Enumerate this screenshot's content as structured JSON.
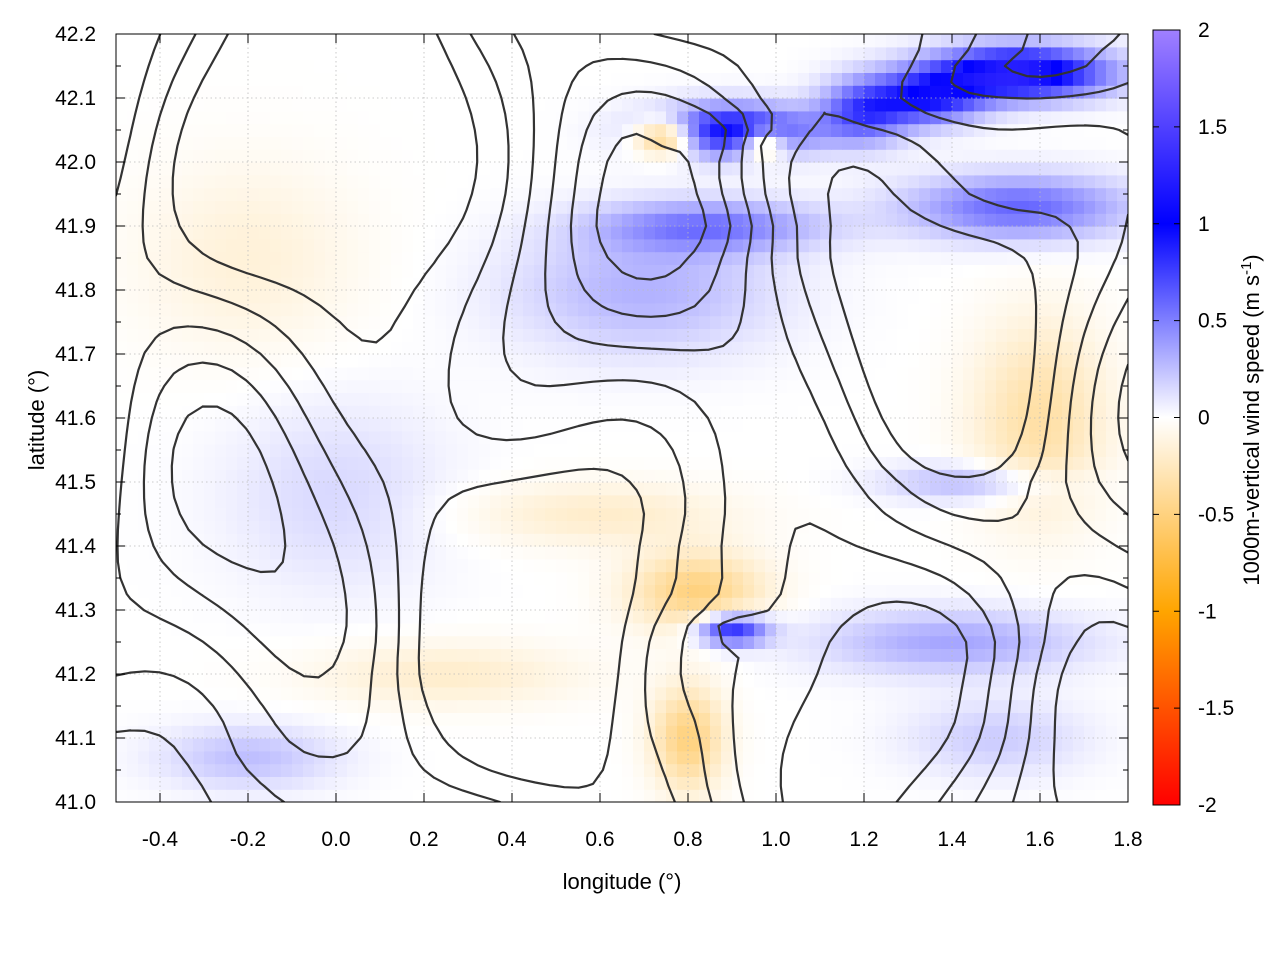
{
  "chart_data": {
    "type": "heatmap",
    "xlabel": "longitude (°)",
    "ylabel": "latitude (°)",
    "colorbar_label": "1000m-vertical wind speed (m s",
    "colorbar_label_sup": "-1",
    "colorbar_label_close": ")",
    "xlim": [
      -0.5,
      1.8
    ],
    "ylim": [
      41.0,
      42.2
    ],
    "clim": [
      -2,
      2
    ],
    "x_ticks": [
      "-0.4",
      "-0.2",
      "0.0",
      "0.2",
      "0.4",
      "0.6",
      "0.8",
      "1.0",
      "1.2",
      "1.4",
      "1.6",
      "1.8"
    ],
    "x_tick_values": [
      -0.4,
      -0.2,
      0.0,
      0.2,
      0.4,
      0.6,
      0.8,
      1.0,
      1.2,
      1.4,
      1.6,
      1.8
    ],
    "y_ticks": [
      "41.0",
      "41.1",
      "41.2",
      "41.3",
      "41.4",
      "41.5",
      "41.6",
      "41.7",
      "41.8",
      "41.9",
      "42.0",
      "42.1",
      "42.2"
    ],
    "y_tick_values": [
      41.0,
      41.1,
      41.2,
      41.3,
      41.4,
      41.5,
      41.6,
      41.7,
      41.8,
      41.9,
      42.0,
      42.1,
      42.2
    ],
    "colorbar_ticks": [
      "2",
      "1.5",
      "1",
      "0.5",
      "0",
      "-0.5",
      "-1",
      "-1.5",
      "-2"
    ],
    "colorbar_tick_values": [
      2,
      1.5,
      1,
      0.5,
      0,
      -0.5,
      -1,
      -1.5,
      -2
    ],
    "colormap": [
      "#ff0000",
      "#ffa500",
      "#ffffff",
      "#0000ff",
      "#a080ff"
    ],
    "grid": true,
    "features": [
      {
        "lon": 0.9,
        "lat": 42.05,
        "value": 1.0,
        "sx": 0.18,
        "sy": 0.04
      },
      {
        "lon": 1.55,
        "lat": 42.14,
        "value": 1.3,
        "sx": 0.2,
        "sy": 0.04
      },
      {
        "lon": 1.35,
        "lat": 42.1,
        "value": 0.8,
        "sx": 0.12,
        "sy": 0.04
      },
      {
        "lon": 0.75,
        "lat": 42.04,
        "value": -0.8,
        "sx": 0.07,
        "sy": 0.03
      },
      {
        "lon": 0.97,
        "lat": 42.03,
        "value": -0.7,
        "sx": 0.05,
        "sy": 0.025
      },
      {
        "lon": 1.55,
        "lat": 41.93,
        "value": 0.6,
        "sx": 0.25,
        "sy": 0.05
      },
      {
        "lon": 0.85,
        "lat": 41.9,
        "value": 0.5,
        "sx": 0.25,
        "sy": 0.04
      },
      {
        "lon": 0.7,
        "lat": 41.8,
        "value": 0.3,
        "sx": 0.3,
        "sy": 0.1
      },
      {
        "lon": 0.0,
        "lat": 41.48,
        "value": 0.15,
        "sx": 0.25,
        "sy": 0.15
      },
      {
        "lon": 0.9,
        "lat": 41.27,
        "value": 0.9,
        "sx": 0.08,
        "sy": 0.025
      },
      {
        "lon": 0.82,
        "lat": 41.33,
        "value": -0.5,
        "sx": 0.15,
        "sy": 0.06
      },
      {
        "lon": 0.8,
        "lat": 41.1,
        "value": -0.5,
        "sx": 0.08,
        "sy": 0.08
      },
      {
        "lon": 0.25,
        "lat": 41.2,
        "value": -0.2,
        "sx": 0.3,
        "sy": 0.05
      },
      {
        "lon": -0.2,
        "lat": 41.07,
        "value": 0.25,
        "sx": 0.2,
        "sy": 0.05
      },
      {
        "lon": 1.6,
        "lat": 41.6,
        "value": -0.35,
        "sx": 0.15,
        "sy": 0.15
      },
      {
        "lon": 1.45,
        "lat": 41.5,
        "value": 0.3,
        "sx": 0.2,
        "sy": 0.03
      },
      {
        "lon": 1.4,
        "lat": 41.25,
        "value": 0.35,
        "sx": 0.3,
        "sy": 0.05
      },
      {
        "lon": 1.2,
        "lat": 42.08,
        "value": 0.7,
        "sx": 0.1,
        "sy": 0.05
      },
      {
        "lon": 1.5,
        "lat": 41.1,
        "value": 0.2,
        "sx": 0.2,
        "sy": 0.06
      },
      {
        "lon": 0.6,
        "lat": 41.45,
        "value": -0.2,
        "sx": 0.3,
        "sy": 0.05
      },
      {
        "lon": -0.2,
        "lat": 41.85,
        "value": -0.15,
        "sx": 0.25,
        "sy": 0.15
      }
    ],
    "contour_levels": [
      -0.35,
      -0.1,
      0.15,
      0.4,
      0.65,
      0.9
    ]
  }
}
